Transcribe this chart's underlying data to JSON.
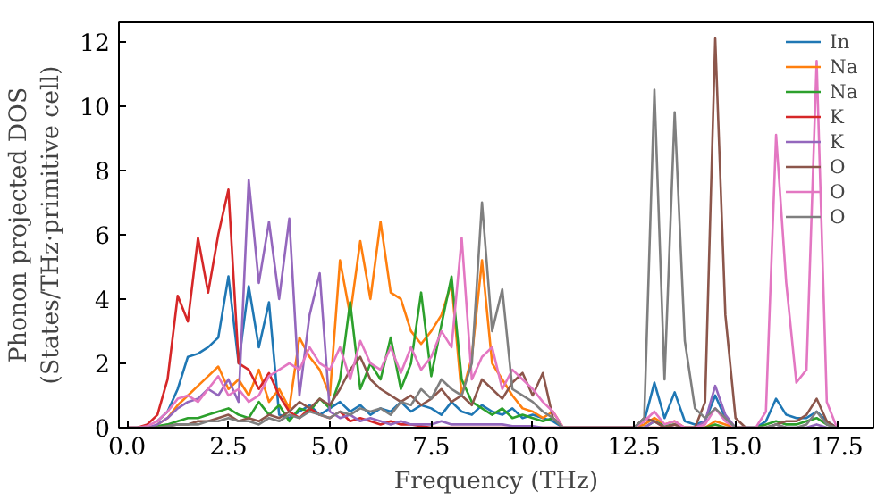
{
  "chart_data": {
    "type": "line",
    "xlabel": "Frequency (THz)",
    "ylabel": "Phonon projected DOS\n(States/THz·primitive cell)",
    "x": [
      0,
      0.25,
      0.5,
      0.75,
      1,
      1.25,
      1.5,
      1.75,
      2,
      2.25,
      2.5,
      2.75,
      3,
      3.25,
      3.5,
      3.75,
      4,
      4.25,
      4.5,
      4.75,
      5,
      5.25,
      5.5,
      5.75,
      6,
      6.25,
      6.5,
      6.75,
      7,
      7.25,
      7.5,
      7.75,
      8,
      8.25,
      8.5,
      8.75,
      9,
      9.25,
      9.5,
      9.75,
      10,
      10.25,
      10.5,
      10.75,
      11,
      11.25,
      11.5,
      11.75,
      12,
      12.25,
      12.5,
      12.75,
      13,
      13.25,
      13.5,
      13.75,
      14,
      14.25,
      14.5,
      14.75,
      15,
      15.25,
      15.5,
      15.75,
      16,
      16.25,
      16.5,
      16.75,
      17,
      17.25,
      17.5
    ],
    "series": [
      {
        "name": "In",
        "color": "#1f77b4",
        "values": [
          null,
          null,
          null,
          0.2,
          0.5,
          1.2,
          2.2,
          2.3,
          2.5,
          2.8,
          4.7,
          2.0,
          4.4,
          2.5,
          3.9,
          0.4,
          0.3,
          0.5,
          0.7,
          0.4,
          0.6,
          0.8,
          0.5,
          0.7,
          0.4,
          0.6,
          0.5,
          0.8,
          0.5,
          0.7,
          0.6,
          0.4,
          0.8,
          0.5,
          0.4,
          0.7,
          0.5,
          0.4,
          0.6,
          0.3,
          0.4,
          0.3,
          0.2,
          0,
          0,
          0,
          0,
          0,
          0,
          0,
          0,
          0.2,
          1.4,
          0.3,
          1.1,
          0.2,
          0.1,
          0.2,
          1.0,
          0.3,
          0,
          0,
          0,
          0.2,
          0.9,
          0.4,
          0.3,
          0.3,
          0.5,
          0.2,
          0
        ]
      },
      {
        "name": "Na",
        "color": "#ff7f0e",
        "values": [
          null,
          null,
          null,
          0.1,
          0.3,
          0.7,
          1.0,
          1.3,
          1.6,
          1.9,
          1.2,
          1.5,
          1.0,
          1.8,
          0.8,
          1.2,
          0.6,
          2.8,
          2.2,
          1.8,
          1.0,
          5.2,
          3.5,
          5.8,
          4.0,
          6.4,
          4.2,
          4.0,
          3.0,
          2.6,
          3.0,
          3.5,
          4.5,
          1.0,
          2.2,
          5.2,
          2.0,
          1.5,
          1.0,
          0.6,
          0.5,
          0.3,
          0.5,
          0,
          0,
          0,
          0,
          0,
          0,
          0,
          0,
          0.1,
          0.3,
          0.1,
          0.2,
          0,
          0,
          0,
          0.2,
          0.1,
          0,
          0,
          null,
          null,
          null,
          null,
          null,
          null,
          null,
          null,
          null
        ]
      },
      {
        "name": "Na",
        "color": "#2ca02c",
        "values": [
          null,
          null,
          0,
          0.05,
          0.1,
          0.2,
          0.3,
          0.3,
          0.4,
          0.5,
          0.6,
          0.4,
          0.3,
          0.8,
          0.4,
          0.7,
          0.2,
          0.6,
          0.5,
          0.9,
          0.6,
          1.5,
          3.9,
          1.2,
          2.0,
          1.5,
          2.8,
          1.2,
          2.0,
          4.2,
          1.6,
          3.2,
          4.7,
          1.5,
          0.8,
          0.6,
          0.4,
          0.6,
          0.3,
          0.4,
          0.3,
          0.2,
          0.3,
          0,
          0,
          0,
          0,
          0,
          0,
          0,
          0,
          0,
          0.2,
          0.05,
          0.1,
          0,
          0,
          0,
          0.1,
          0,
          0,
          0,
          0,
          0.1,
          0.2,
          0.1,
          0.1,
          0.2,
          0.3,
          0.1,
          0
        ]
      },
      {
        "name": "K",
        "color": "#d62728",
        "values": [
          0,
          0,
          0.1,
          0.4,
          1.5,
          4.1,
          3.3,
          5.9,
          4.2,
          6.0,
          7.4,
          2.0,
          1.8,
          1.2,
          1.7,
          1.0,
          0.5,
          0.3,
          0.6,
          0.4,
          0.3,
          0.5,
          0.2,
          0.3,
          0.2,
          0.1,
          0.2,
          0.1,
          0.1,
          0.05,
          0,
          0,
          0,
          0,
          0,
          0,
          0,
          0,
          0,
          0,
          0,
          0,
          0,
          0,
          0,
          0,
          0,
          0,
          0,
          0,
          0,
          0,
          0,
          0,
          0,
          0,
          0,
          0,
          0,
          0,
          0,
          0,
          null,
          null,
          null,
          null,
          null,
          null,
          null,
          null,
          null
        ]
      },
      {
        "name": "K",
        "color": "#9467bd",
        "values": [
          0,
          0,
          0,
          0.1,
          0.3,
          0.6,
          0.8,
          0.9,
          1.2,
          1.0,
          1.5,
          0.8,
          7.7,
          4.5,
          6.4,
          4.0,
          6.5,
          1.0,
          3.5,
          4.8,
          0.5,
          0.3,
          0.4,
          0.2,
          0.3,
          0.2,
          0.1,
          0.2,
          0.1,
          0.1,
          0.1,
          0.2,
          0.1,
          0.1,
          0.1,
          0.1,
          0.1,
          0.1,
          0.05,
          0.05,
          0.05,
          0,
          0,
          0,
          0,
          0,
          0,
          0,
          0,
          0,
          0,
          0,
          0.2,
          0,
          0.1,
          0,
          0,
          0.2,
          1.3,
          0.4,
          0,
          0,
          0,
          0,
          0.1,
          0,
          0,
          0,
          0.1,
          0,
          0
        ]
      },
      {
        "name": "O",
        "color": "#8c564b",
        "values": [
          0,
          0,
          0,
          0,
          0.05,
          0.1,
          0.1,
          0.2,
          0.2,
          0.3,
          0.4,
          0.2,
          0.3,
          0.2,
          0.4,
          0.3,
          0.5,
          0.8,
          0.6,
          0.9,
          0.7,
          1.2,
          1.8,
          2.2,
          1.5,
          1.2,
          1.0,
          0.8,
          1.0,
          0.7,
          0.9,
          1.2,
          0.8,
          1.0,
          0.7,
          1.5,
          1.2,
          0.9,
          1.4,
          1.7,
          1.0,
          1.7,
          0.3,
          0,
          0,
          0,
          0,
          0,
          0,
          0,
          0,
          0.3,
          0.2,
          0,
          0.1,
          0,
          0,
          0.8,
          12.1,
          3.5,
          0.3,
          0,
          0,
          0,
          0.1,
          0.2,
          0.2,
          0.4,
          0.9,
          0.2,
          0
        ]
      },
      {
        "name": "O",
        "color": "#e377c2",
        "values": [
          0,
          0,
          0.05,
          0.2,
          0.5,
          0.9,
          1.0,
          0.8,
          1.2,
          1.6,
          1.0,
          1.2,
          0.8,
          1.0,
          1.6,
          1.8,
          2.0,
          1.8,
          2.5,
          2.0,
          1.8,
          2.5,
          1.5,
          2.7,
          2.0,
          1.8,
          2.5,
          1.7,
          2.5,
          1.8,
          2.2,
          3.0,
          2.5,
          5.9,
          1.5,
          2.2,
          2.5,
          1.2,
          1.8,
          1.5,
          1.2,
          0.8,
          0.5,
          0,
          0,
          0,
          0,
          0,
          0,
          0,
          0,
          0.2,
          0.5,
          0.1,
          0.2,
          0,
          0,
          0.1,
          0.6,
          0.2,
          0,
          0,
          0,
          0.5,
          9.1,
          4.5,
          1.4,
          1.8,
          11.4,
          0.8,
          0
        ]
      },
      {
        "name": "O",
        "color": "#7f7f7f",
        "values": [
          0,
          0,
          0,
          0,
          0.05,
          0.1,
          0.1,
          0.1,
          0.2,
          0.2,
          0.3,
          0.2,
          0.2,
          0.1,
          0.3,
          0.2,
          0.4,
          0.3,
          0.5,
          0.4,
          0.3,
          0.5,
          0.4,
          0.6,
          0.5,
          0.6,
          0.4,
          0.8,
          0.7,
          1.2,
          0.9,
          1.5,
          1.2,
          1.0,
          2.0,
          7.0,
          3.0,
          4.3,
          1.2,
          1.0,
          0.8,
          0.5,
          0.3,
          0,
          0,
          0,
          0,
          0,
          0,
          0,
          0,
          0.3,
          10.5,
          1.5,
          9.8,
          2.7,
          0.6,
          0.3,
          0.6,
          0.3,
          0,
          0,
          0,
          0,
          0.1,
          0,
          0,
          0.1,
          0.5,
          0.1,
          0
        ]
      }
    ],
    "xlim": [
      -0.2,
      18.4
    ],
    "ylim": [
      0,
      12.6
    ],
    "xticks": [
      {
        "value": 0,
        "label": "0.0"
      },
      {
        "value": 2.5,
        "label": "2.5"
      },
      {
        "value": 5,
        "label": "5.0"
      },
      {
        "value": 7.5,
        "label": "7.5"
      },
      {
        "value": 10,
        "label": "10.0"
      },
      {
        "value": 12.5,
        "label": "12.5"
      },
      {
        "value": 15,
        "label": "15.0"
      },
      {
        "value": 17.5,
        "label": "17.5"
      }
    ],
    "yticks": [
      0,
      2,
      4,
      6,
      8,
      10,
      12
    ],
    "legend": "top right",
    "grid": false
  }
}
